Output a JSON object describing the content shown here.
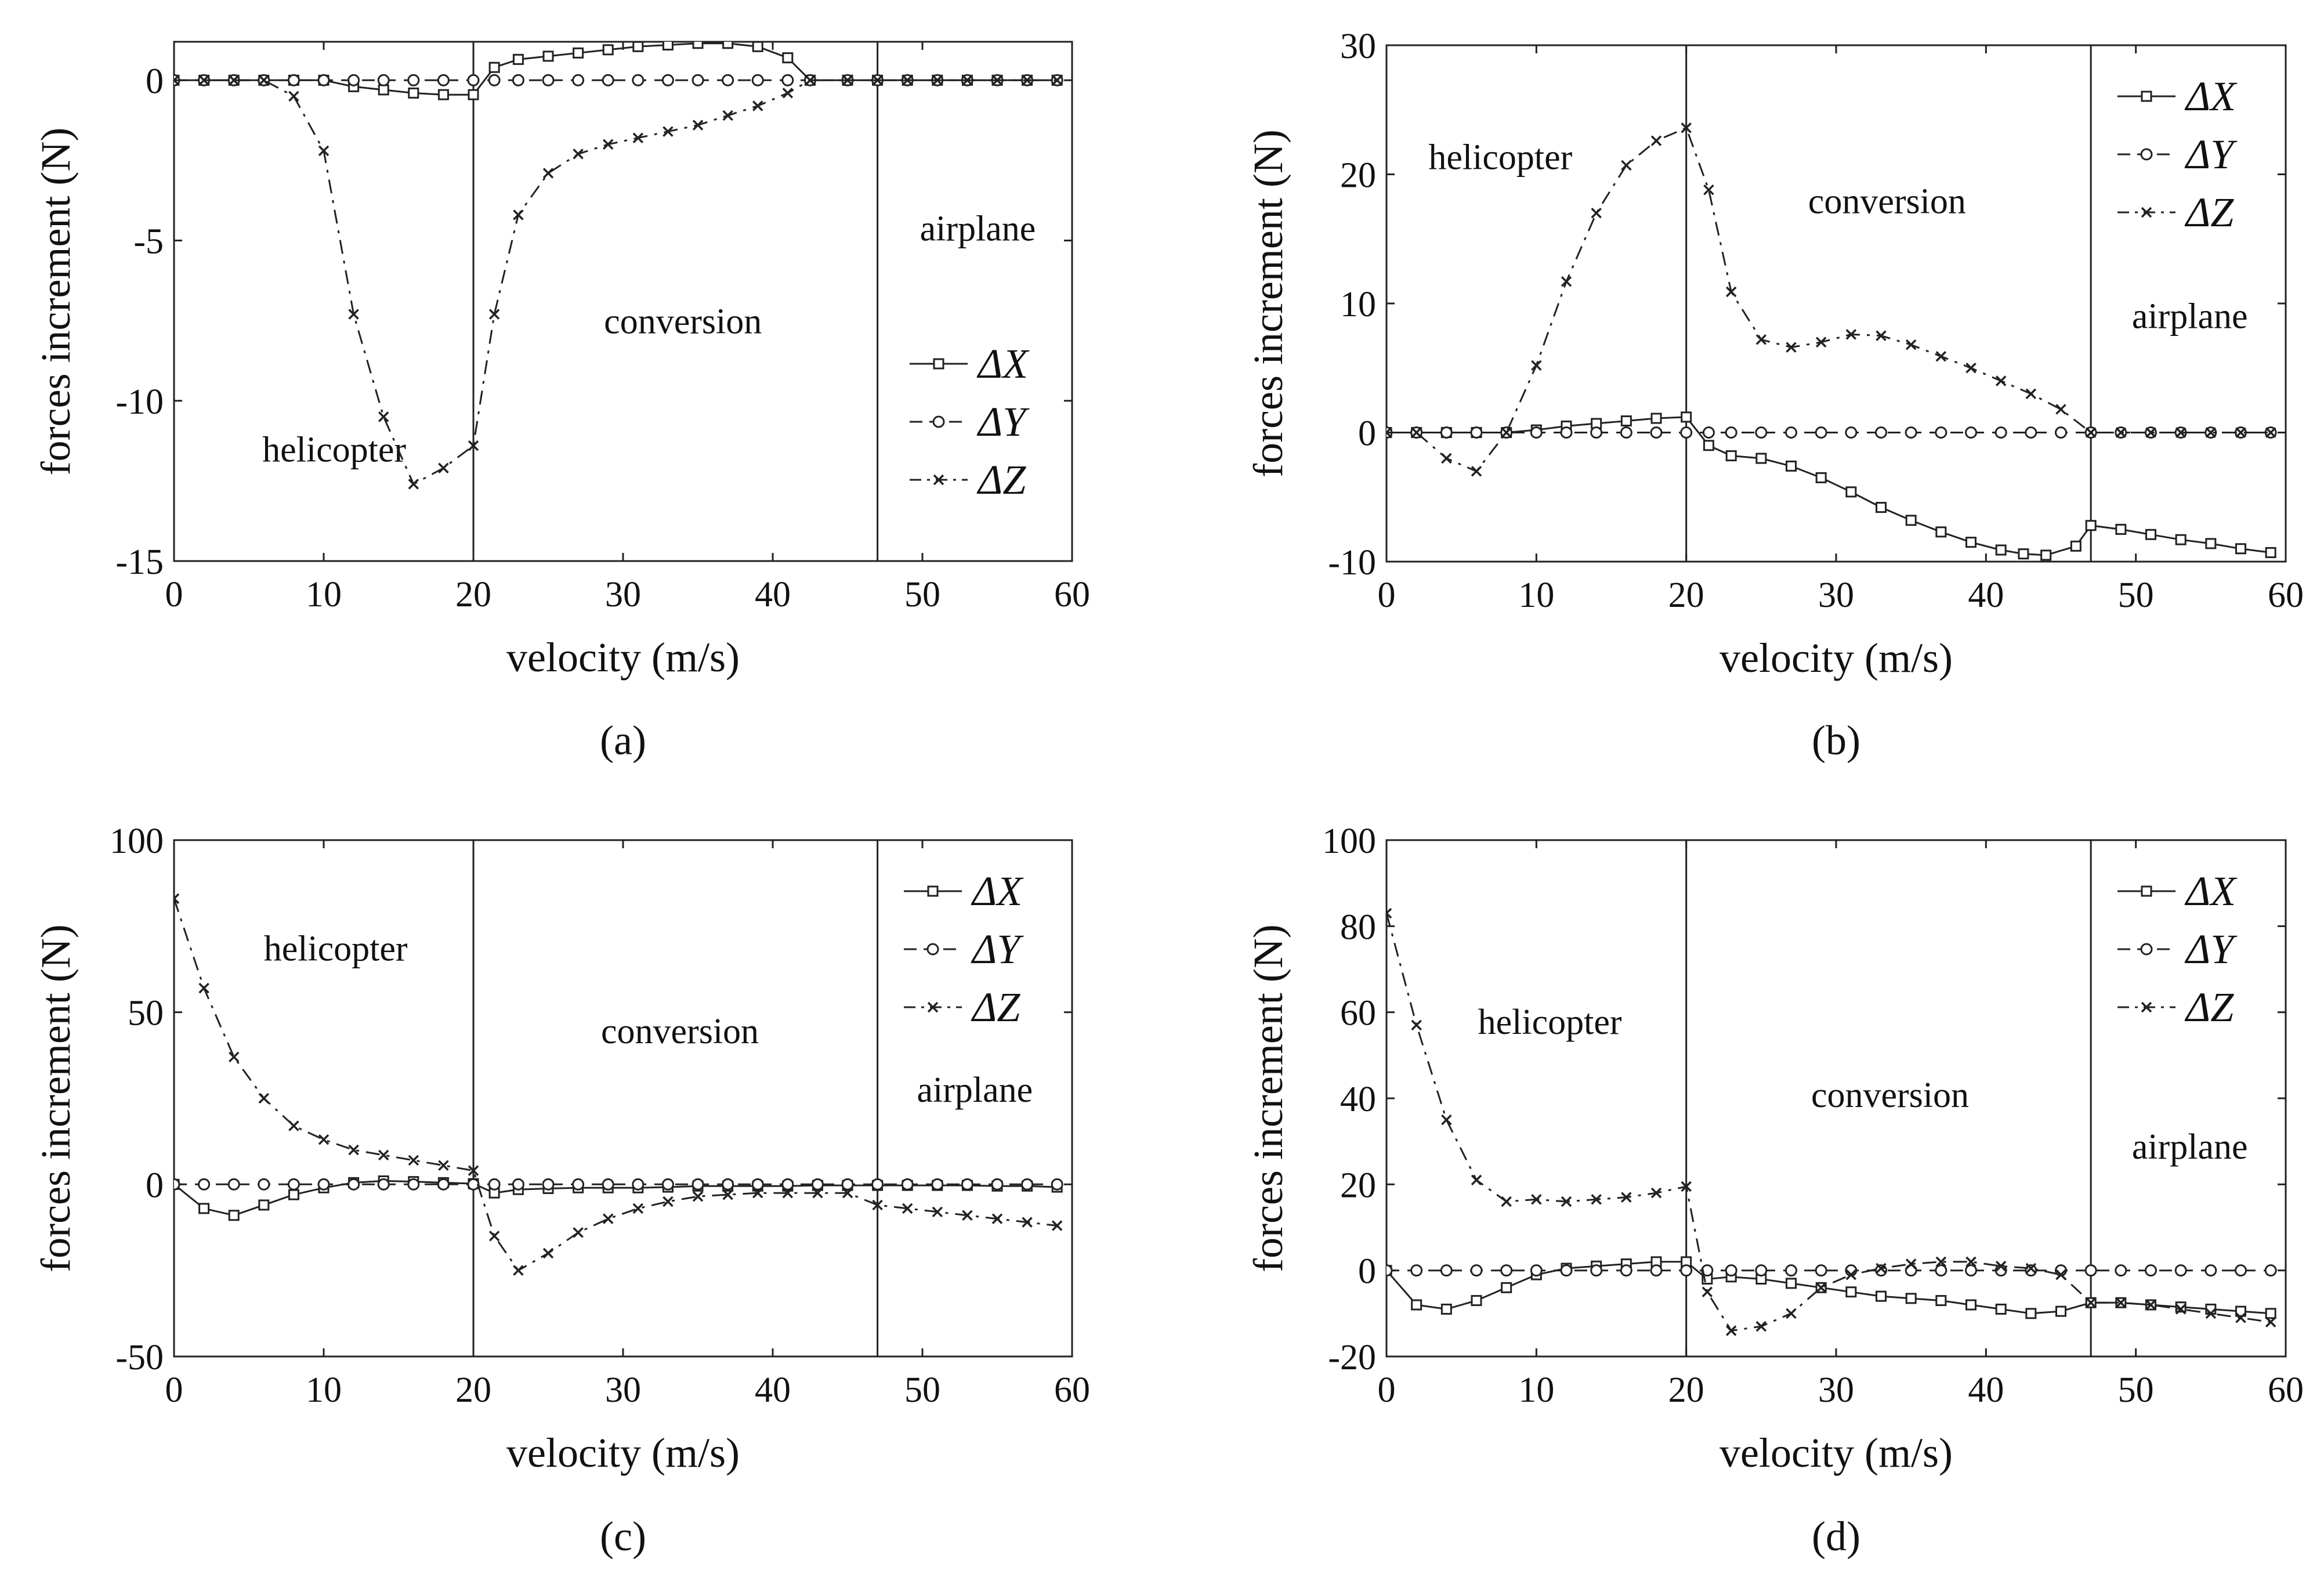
{
  "chart_data": [
    {
      "id": "a",
      "type": "line",
      "panel_label": "(a)",
      "xlabel": "velocity (m/s)",
      "ylabel": "forces increment (N)",
      "xlim": [
        0,
        60
      ],
      "ylim": [
        -15,
        1.2
      ],
      "xticks": [
        0,
        10,
        20,
        30,
        40,
        50,
        60
      ],
      "yticks": [
        0,
        -5,
        -10,
        -15
      ],
      "ytick_labels": [
        "0",
        "-5",
        "-10",
        "-15"
      ],
      "boundaries": [
        20,
        47
      ],
      "regions": [
        {
          "label": "helicopter",
          "x": 10.7,
          "y": -11.9
        },
        {
          "label": "conversion",
          "x": 34,
          "y": -7.9
        },
        {
          "label": "airplane",
          "x": 53.7,
          "y": -5.0
        }
      ],
      "legend": {
        "placement": "right-middle",
        "order": [
          "ΔX",
          "ΔY",
          "ΔZ"
        ]
      },
      "series": [
        {
          "name": "ΔX",
          "style": "solid",
          "marker": "square",
          "x": [
            0,
            2,
            4,
            6,
            8,
            10,
            12,
            14,
            16,
            18,
            20,
            21.4,
            23,
            25,
            27,
            29,
            31,
            33,
            35,
            37,
            39,
            41,
            42.5,
            45,
            47,
            49,
            51,
            53,
            55,
            57,
            59
          ],
          "y": [
            0,
            0,
            0,
            0,
            0,
            0,
            -0.2,
            -0.3,
            -0.4,
            -0.45,
            -0.45,
            0.4,
            0.65,
            0.75,
            0.85,
            0.95,
            1.05,
            1.1,
            1.15,
            1.15,
            1.05,
            0.7,
            0.0,
            0,
            0,
            0,
            0,
            0,
            0,
            0,
            0
          ]
        },
        {
          "name": "ΔY",
          "style": "dashed",
          "marker": "circle",
          "x": [
            0,
            2,
            4,
            6,
            8,
            10,
            12,
            14,
            16,
            18,
            20,
            21.4,
            23,
            25,
            27,
            29,
            31,
            33,
            35,
            37,
            39,
            41,
            42.5,
            45,
            47,
            49,
            51,
            53,
            55,
            57,
            59
          ],
          "y": [
            0,
            0,
            0,
            0,
            0,
            0,
            0,
            0,
            0,
            0,
            0,
            0,
            0,
            0,
            0,
            0,
            0,
            0,
            0,
            0,
            0,
            0,
            0,
            0,
            0,
            0,
            0,
            0,
            0,
            0,
            0
          ]
        },
        {
          "name": "ΔZ",
          "style": "dashdot",
          "marker": "x",
          "x": [
            0,
            2,
            4,
            6,
            8,
            10,
            12,
            14,
            16,
            18,
            20,
            21.4,
            23,
            25,
            27,
            29,
            31,
            33,
            35,
            37,
            39,
            41,
            42.5,
            45,
            47,
            49,
            51,
            53,
            55,
            57,
            59
          ],
          "y": [
            0,
            0,
            0,
            0,
            -0.5,
            -2.2,
            -7.3,
            -10.5,
            -12.6,
            -12.1,
            -11.4,
            -7.3,
            -4.2,
            -2.9,
            -2.3,
            -2.0,
            -1.8,
            -1.6,
            -1.4,
            -1.1,
            -0.8,
            -0.4,
            0,
            0,
            0,
            0,
            0,
            0,
            0,
            0,
            0
          ]
        }
      ]
    },
    {
      "id": "b",
      "type": "line",
      "panel_label": "(b)",
      "xlabel": "velocity (m/s)",
      "ylabel": "forces increment (N)",
      "xlim": [
        0,
        60
      ],
      "ylim": [
        -10,
        30
      ],
      "xticks": [
        0,
        10,
        20,
        30,
        40,
        50,
        60
      ],
      "yticks": [
        -10,
        0,
        10,
        20,
        30
      ],
      "ytick_labels": [
        "-10",
        "0",
        "10",
        "20",
        "30"
      ],
      "boundaries": [
        20,
        47
      ],
      "regions": [
        {
          "label": "helicopter",
          "x": 7.6,
          "y": 20.4
        },
        {
          "label": "conversion",
          "x": 33.4,
          "y": 17.0
        },
        {
          "label": "airplane",
          "x": 53.6,
          "y": 8.1
        }
      ],
      "legend": {
        "placement": "top-right",
        "order": [
          "ΔX",
          "ΔY",
          "ΔZ"
        ]
      },
      "series": [
        {
          "name": "ΔX",
          "style": "solid",
          "marker": "square",
          "x": [
            0,
            2,
            4,
            6,
            8,
            10,
            12,
            14,
            16,
            18,
            20,
            21.5,
            23,
            25,
            27,
            29,
            31,
            33,
            35,
            37,
            39,
            41,
            42.5,
            44,
            46,
            47,
            49,
            51,
            53,
            55,
            57,
            59
          ],
          "y": [
            0,
            0,
            0,
            0,
            0,
            0.2,
            0.5,
            0.7,
            0.9,
            1.1,
            1.2,
            -1.0,
            -1.8,
            -2.0,
            -2.6,
            -3.5,
            -4.6,
            -5.8,
            -6.8,
            -7.7,
            -8.5,
            -9.1,
            -9.4,
            -9.5,
            -8.8,
            -7.2,
            -7.5,
            -7.9,
            -8.3,
            -8.6,
            -9.0,
            -9.3
          ]
        },
        {
          "name": "ΔY",
          "style": "dashed",
          "marker": "circle",
          "x": [
            0,
            2,
            4,
            6,
            8,
            10,
            12,
            14,
            16,
            18,
            20,
            21.5,
            23,
            25,
            27,
            29,
            31,
            33,
            35,
            37,
            39,
            41,
            43,
            45,
            47,
            49,
            51,
            53,
            55,
            57,
            59
          ],
          "y": [
            0,
            0,
            0,
            0,
            0,
            0,
            0,
            0,
            0,
            0,
            0,
            0,
            0,
            0,
            0,
            0,
            0,
            0,
            0,
            0,
            0,
            0,
            0,
            0,
            0,
            0,
            0,
            0,
            0,
            0,
            0
          ]
        },
        {
          "name": "ΔZ",
          "style": "dashdot",
          "marker": "x",
          "x": [
            0,
            2,
            4,
            6,
            8,
            10,
            12,
            14,
            16,
            18,
            20,
            21.5,
            23,
            25,
            27,
            29,
            31,
            33,
            35,
            37,
            39,
            41,
            43,
            45,
            47,
            49,
            51,
            53,
            55,
            57,
            59
          ],
          "y": [
            0,
            0,
            -2,
            -3,
            0,
            5.2,
            11.7,
            17.0,
            20.7,
            22.6,
            23.6,
            18.8,
            10.9,
            7.2,
            6.6,
            7.0,
            7.6,
            7.5,
            6.8,
            5.9,
            5.0,
            4.0,
            3.0,
            1.8,
            0,
            0,
            0,
            0,
            0,
            0,
            0
          ]
        }
      ]
    },
    {
      "id": "c",
      "type": "line",
      "panel_label": "(c)",
      "xlabel": "velocity (m/s)",
      "ylabel": "forces increment (N)",
      "xlim": [
        0,
        60
      ],
      "ylim": [
        -50,
        100
      ],
      "xticks": [
        0,
        10,
        20,
        30,
        40,
        50,
        60
      ],
      "yticks": [
        -50,
        0,
        50,
        100
      ],
      "ytick_labels": [
        "-50",
        "0",
        "50",
        "100"
      ],
      "boundaries": [
        20,
        47
      ],
      "regions": [
        {
          "label": "helicopter",
          "x": 10.8,
          "y": 65
        },
        {
          "label": "conversion",
          "x": 33.8,
          "y": 41
        },
        {
          "label": "airplane",
          "x": 53.5,
          "y": 24
        }
      ],
      "legend": {
        "placement": "top-right",
        "order": [
          "ΔX",
          "ΔY",
          "ΔZ"
        ]
      },
      "series": [
        {
          "name": "ΔX",
          "style": "solid",
          "marker": "square",
          "x": [
            0,
            2,
            4,
            6,
            8,
            10,
            12,
            14,
            16,
            18,
            20,
            21.4,
            23,
            25,
            27,
            29,
            31,
            33,
            35,
            37,
            39,
            41,
            43,
            45,
            47,
            49,
            51,
            53,
            55,
            57,
            59
          ],
          "y": [
            0,
            -7,
            -9,
            -6,
            -3,
            -1,
            0.5,
            1,
            0.8,
            0.5,
            0.2,
            -2.5,
            -1.5,
            -1.2,
            -1,
            -1,
            -1,
            -0.8,
            -0.5,
            -0.5,
            -0.5,
            -0.5,
            -0.3,
            -0.3,
            -0.3,
            -0.3,
            -0.3,
            -0.3,
            -0.5,
            -0.5,
            -0.8
          ]
        },
        {
          "name": "ΔY",
          "style": "dashed",
          "marker": "circle",
          "x": [
            0,
            2,
            4,
            6,
            8,
            10,
            12,
            14,
            16,
            18,
            20,
            21.4,
            23,
            25,
            27,
            29,
            31,
            33,
            35,
            37,
            39,
            41,
            43,
            45,
            47,
            49,
            51,
            53,
            55,
            57,
            59
          ],
          "y": [
            0,
            0,
            0,
            0,
            0,
            0,
            0,
            0,
            0,
            0,
            0,
            0,
            0,
            0,
            0,
            0,
            0,
            0,
            0,
            0,
            0,
            0,
            0,
            0,
            0,
            0,
            0,
            0,
            0,
            0,
            0
          ]
        },
        {
          "name": "ΔZ",
          "style": "dashdot",
          "marker": "x",
          "x": [
            0,
            2,
            4,
            6,
            8,
            10,
            12,
            14,
            16,
            18,
            20,
            21.4,
            23,
            25,
            27,
            29,
            31,
            33,
            35,
            37,
            39,
            41,
            43,
            45,
            47,
            49,
            51,
            53,
            55,
            57,
            59
          ],
          "y": [
            83,
            57,
            37,
            25,
            17,
            13,
            10,
            8.5,
            7,
            5.5,
            4,
            -15,
            -25,
            -20,
            -14,
            -10,
            -7,
            -5,
            -3.5,
            -3,
            -2.5,
            -2.5,
            -2.5,
            -2.5,
            -6,
            -7,
            -8,
            -9,
            -10,
            -11,
            -12
          ]
        }
      ]
    },
    {
      "id": "d",
      "type": "line",
      "panel_label": "(d)",
      "xlabel": "velocity (m/s)",
      "ylabel": "forces increment (N)",
      "xlim": [
        0,
        60
      ],
      "ylim": [
        -20,
        100
      ],
      "xticks": [
        0,
        10,
        20,
        30,
        40,
        50,
        60
      ],
      "yticks": [
        -20,
        0,
        20,
        40,
        60,
        80,
        100
      ],
      "ytick_labels": [
        "-20",
        "0",
        "20",
        "40",
        "60",
        "80",
        "100"
      ],
      "boundaries": [
        20,
        47
      ],
      "regions": [
        {
          "label": "helicopter",
          "x": 10.9,
          "y": 55
        },
        {
          "label": "conversion",
          "x": 33.6,
          "y": 38
        },
        {
          "label": "airplane",
          "x": 53.6,
          "y": 26
        }
      ],
      "legend": {
        "placement": "top-right",
        "order": [
          "ΔX",
          "ΔY",
          "ΔZ"
        ]
      },
      "series": [
        {
          "name": "ΔX",
          "style": "solid",
          "marker": "square",
          "x": [
            0,
            2,
            4,
            6,
            8,
            10,
            12,
            14,
            16,
            18,
            20,
            21.4,
            23,
            25,
            27,
            29,
            31,
            33,
            35,
            37,
            39,
            41,
            43,
            45,
            47,
            49,
            51,
            53,
            55,
            57,
            59
          ],
          "y": [
            0,
            -8,
            -9,
            -7,
            -4,
            -1,
            0.5,
            1,
            1.5,
            2,
            2,
            -2,
            -1.5,
            -2,
            -3,
            -4,
            -5,
            -6,
            -6.5,
            -7,
            -8,
            -9,
            -10,
            -9.5,
            -7.5,
            -7.5,
            -8,
            -8.5,
            -9,
            -9.5,
            -10
          ]
        },
        {
          "name": "ΔY",
          "style": "dashed",
          "marker": "circle",
          "x": [
            0,
            2,
            4,
            6,
            8,
            10,
            12,
            14,
            16,
            18,
            20,
            21.4,
            23,
            25,
            27,
            29,
            31,
            33,
            35,
            37,
            39,
            41,
            43,
            45,
            47,
            49,
            51,
            53,
            55,
            57,
            59
          ],
          "y": [
            0,
            0,
            0,
            0,
            0,
            0,
            0,
            0,
            0,
            0,
            0,
            0,
            0,
            0,
            0,
            0,
            0,
            0,
            0,
            0,
            0,
            0,
            0,
            0,
            0,
            0,
            0,
            0,
            0,
            0,
            0
          ]
        },
        {
          "name": "ΔZ",
          "style": "dashdot",
          "marker": "x",
          "x": [
            0,
            2,
            4,
            6,
            8,
            10,
            12,
            14,
            16,
            18,
            20,
            21.4,
            23,
            25,
            27,
            29,
            31,
            33,
            35,
            37,
            39,
            41,
            43,
            45,
            47,
            49,
            51,
            53,
            55,
            57,
            59
          ],
          "y": [
            83,
            57,
            35,
            21,
            16,
            16.5,
            16,
            16.5,
            17,
            18,
            19.5,
            -5,
            -14,
            -13,
            -10,
            -4,
            -1,
            0.5,
            1.5,
            2,
            2,
            1,
            0.5,
            -1,
            -7.5,
            -7.5,
            -8,
            -9,
            -10,
            -11,
            -12
          ]
        }
      ]
    }
  ]
}
